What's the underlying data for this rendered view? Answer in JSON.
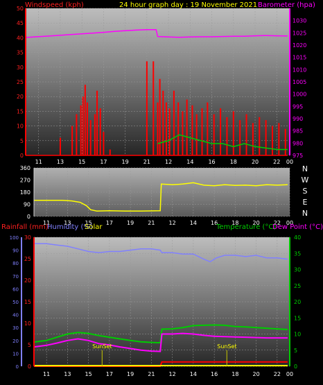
{
  "header": {
    "windspeed_label": "Windspeed (kph)",
    "title": "24 hour graph day : 19 November 2021",
    "barometer_label": "Barometer (hpa)"
  },
  "wind_dir_labels": [
    "N",
    "W",
    "S",
    "E",
    "N"
  ],
  "bottom_labels": {
    "rainfall": "Rainfall (mm)",
    "humidity": "Humidity (%)",
    "solar": "Solar",
    "temperature": "Temperature (°C)",
    "dewpoint": "Dew Point (°C)",
    "sunset": "SunSet"
  },
  "colors": {
    "wind": "#ff0000",
    "gust": "#ff0000",
    "wind_avg": "#00cc00",
    "wind_low": "#ccffcc",
    "barometer": "#ff00ff",
    "direction": "#ffff00",
    "humidity": "#8080ff",
    "temperature": "#00cc00",
    "dewpoint": "#ff00ff",
    "rainfall": "#ff0000",
    "solar": "#ffff00"
  },
  "chart_data": [
    {
      "type": "line",
      "name": "wind-barometer",
      "x_ticks": [
        "11",
        "13",
        "15",
        "17",
        "19",
        "21",
        "12",
        "14",
        "16",
        "18",
        "20",
        "22",
        "00"
      ],
      "left_axis": {
        "label": "Windspeed (kph)",
        "ylim": [
          0,
          50
        ],
        "ticks": [
          0,
          5,
          10,
          15,
          20,
          25,
          30,
          35,
          40,
          45,
          50
        ]
      },
      "right_axis": {
        "label": "Barometer (hpa)",
        "ylim": [
          975,
          1035
        ],
        "ticks": [
          975,
          980,
          985,
          990,
          995,
          1000,
          1005,
          1010,
          1015,
          1020,
          1025,
          1030
        ]
      },
      "barometer": [
        [
          9.8,
          1023.1
        ],
        [
          10.8,
          1023.4
        ],
        [
          12,
          1023.7
        ],
        [
          13,
          1024.0
        ],
        [
          14,
          1024.3
        ],
        [
          15,
          1024.6
        ],
        [
          16,
          1024.9
        ],
        [
          17,
          1025.2
        ],
        [
          18,
          1025.6
        ],
        [
          19,
          1025.9
        ],
        [
          20,
          1026.1
        ],
        [
          21,
          1026.3
        ],
        [
          21.85,
          1026.3
        ],
        [
          22.0,
          1023.5
        ],
        [
          23,
          1023.3
        ],
        [
          24,
          1023.2
        ],
        [
          25,
          1023.3
        ],
        [
          26,
          1023.4
        ],
        [
          27,
          1023.4
        ],
        [
          28,
          1023.5
        ],
        [
          29,
          1023.6
        ],
        [
          30,
          1023.6
        ],
        [
          31,
          1023.8
        ],
        [
          32,
          1023.9
        ],
        [
          33,
          1023.8
        ],
        [
          34,
          1023.7
        ]
      ],
      "gust_spikes": [
        [
          13.0,
          6
        ],
        [
          14.1,
          10
        ],
        [
          14.5,
          14
        ],
        [
          14.9,
          17
        ],
        [
          15.1,
          20
        ],
        [
          15.3,
          24
        ],
        [
          15.5,
          18
        ],
        [
          15.8,
          12
        ],
        [
          16.2,
          14
        ],
        [
          16.4,
          22
        ],
        [
          16.7,
          16
        ],
        [
          17.0,
          8
        ],
        [
          17.6,
          2
        ],
        [
          21.0,
          32
        ],
        [
          21.6,
          32
        ],
        [
          22.0,
          18
        ],
        [
          22.2,
          26
        ],
        [
          22.5,
          22
        ],
        [
          22.8,
          18
        ],
        [
          23.1,
          16
        ],
        [
          23.5,
          22
        ],
        [
          23.9,
          18
        ],
        [
          24.3,
          15
        ],
        [
          24.7,
          19
        ],
        [
          25.2,
          17
        ],
        [
          25.6,
          14
        ],
        [
          26.1,
          16
        ],
        [
          26.6,
          18
        ],
        [
          27.2,
          14
        ],
        [
          27.8,
          16
        ],
        [
          28.4,
          13
        ],
        [
          29.0,
          15
        ],
        [
          29.6,
          12
        ],
        [
          30.2,
          14
        ],
        [
          30.8,
          11
        ],
        [
          31.4,
          13
        ],
        [
          32.0,
          12
        ],
        [
          32.6,
          10
        ],
        [
          33.2,
          11
        ],
        [
          33.8,
          9
        ]
      ],
      "wind_average": [
        [
          22.0,
          4
        ],
        [
          23,
          5
        ],
        [
          24,
          7
        ],
        [
          25,
          6
        ],
        [
          26,
          5
        ],
        [
          27,
          4
        ],
        [
          28,
          4
        ],
        [
          29,
          3
        ],
        [
          30,
          4
        ],
        [
          31,
          3
        ],
        [
          32,
          2.5
        ],
        [
          33,
          2
        ],
        [
          34,
          2
        ]
      ]
    },
    {
      "type": "line",
      "name": "wind-direction",
      "x_ticks": [
        "11",
        "13",
        "15",
        "17",
        "19",
        "21",
        "12",
        "14",
        "16",
        "18",
        "20",
        "22",
        "00"
      ],
      "left_axis": {
        "ylim": [
          0,
          360
        ],
        "ticks": [
          0,
          90,
          180,
          270,
          360
        ]
      },
      "right_axis_labels": [
        "N",
        "W",
        "S",
        "E",
        "N"
      ],
      "direction": [
        [
          9.8,
          120
        ],
        [
          12.5,
          120
        ],
        [
          13.4,
          115
        ],
        [
          14.2,
          105
        ],
        [
          14.8,
          80
        ],
        [
          15.2,
          50
        ],
        [
          15.8,
          40
        ],
        [
          17,
          42
        ],
        [
          18.5,
          40
        ],
        [
          20,
          40
        ],
        [
          21.85,
          42
        ],
        [
          21.95,
          240
        ],
        [
          23,
          235
        ],
        [
          24,
          240
        ],
        [
          25,
          250
        ],
        [
          26,
          232
        ],
        [
          27,
          228
        ],
        [
          28,
          235
        ],
        [
          29,
          230
        ],
        [
          30,
          232
        ],
        [
          31,
          228
        ],
        [
          32,
          235
        ],
        [
          33,
          232
        ],
        [
          34,
          235
        ]
      ]
    },
    {
      "type": "line",
      "name": "temperature-humidity",
      "x_ticks": [
        "11",
        "13",
        "15",
        "17",
        "19",
        "21",
        "12",
        "14",
        "16",
        "18",
        "20",
        "22",
        "00"
      ],
      "left_axis": {
        "label": "Rainfall (mm)",
        "ylim": [
          0,
          30
        ],
        "ticks": [
          0,
          5,
          10,
          15,
          20,
          25,
          30
        ]
      },
      "left_axis_2": {
        "label": "Humidity (%)",
        "ylim": [
          0,
          100
        ],
        "ticks": [
          0,
          10,
          20,
          30,
          40,
          50,
          60,
          70,
          80,
          90,
          100
        ]
      },
      "right_axis": {
        "label": "Temperature (°C)",
        "ylim": [
          0,
          40
        ],
        "ticks": [
          0,
          5,
          10,
          15,
          20,
          25,
          30,
          35,
          40
        ]
      },
      "humidity": [
        [
          9.8,
          95
        ],
        [
          11,
          95
        ],
        [
          12,
          94
        ],
        [
          13,
          93
        ],
        [
          14,
          91
        ],
        [
          15,
          89
        ],
        [
          16,
          88
        ],
        [
          17,
          89
        ],
        [
          18,
          89
        ],
        [
          19,
          90
        ],
        [
          20,
          91
        ],
        [
          21,
          91
        ],
        [
          21.85,
          90
        ],
        [
          22,
          88
        ],
        [
          23,
          88
        ],
        [
          24,
          87
        ],
        [
          25,
          87
        ],
        [
          26,
          83
        ],
        [
          26.6,
          81
        ],
        [
          27.2,
          84
        ],
        [
          28,
          86
        ],
        [
          29,
          86
        ],
        [
          30,
          85
        ],
        [
          31,
          86
        ],
        [
          32,
          84
        ],
        [
          33,
          84
        ],
        [
          34,
          83
        ]
      ],
      "temperature": [
        [
          9.8,
          7.5
        ],
        [
          11,
          8.0
        ],
        [
          12,
          9.0
        ],
        [
          13,
          10.0
        ],
        [
          14,
          10.5
        ],
        [
          15,
          10.2
        ],
        [
          16,
          9.5
        ],
        [
          17,
          9.0
        ],
        [
          18,
          8.5
        ],
        [
          19,
          8.0
        ],
        [
          20,
          7.6
        ],
        [
          21,
          7.4
        ],
        [
          21.85,
          7.3
        ],
        [
          22,
          11.5
        ],
        [
          23,
          11.6
        ],
        [
          24,
          12.0
        ],
        [
          25,
          12.6
        ],
        [
          26,
          12.7
        ],
        [
          27,
          12.8
        ],
        [
          28,
          12.7
        ],
        [
          29,
          12.3
        ],
        [
          30,
          12.2
        ],
        [
          31,
          12.0
        ],
        [
          32,
          11.8
        ],
        [
          33,
          11.6
        ],
        [
          34,
          11.4
        ]
      ],
      "dewpoint": [
        [
          9.8,
          6.0
        ],
        [
          11,
          6.5
        ],
        [
          12,
          7.2
        ],
        [
          13,
          8.0
        ],
        [
          14,
          8.5
        ],
        [
          15,
          8.0
        ],
        [
          16,
          7.0
        ],
        [
          17,
          6.6
        ],
        [
          18,
          6.0
        ],
        [
          19,
          5.5
        ],
        [
          20,
          5.0
        ],
        [
          21,
          4.7
        ],
        [
          21.85,
          4.6
        ],
        [
          22,
          10.0
        ],
        [
          23,
          10.0
        ],
        [
          24,
          10.2
        ],
        [
          25,
          10.0
        ],
        [
          26,
          9.6
        ],
        [
          27,
          9.3
        ],
        [
          28,
          9.2
        ],
        [
          29,
          9.1
        ],
        [
          30,
          9.0
        ],
        [
          31,
          8.9
        ],
        [
          32,
          8.8
        ],
        [
          33,
          8.8
        ],
        [
          34,
          8.8
        ]
      ],
      "rainfall": [
        [
          9.8,
          0
        ],
        [
          21.85,
          0
        ],
        [
          22,
          1
        ],
        [
          34,
          1
        ]
      ],
      "solar": [
        [
          9.8,
          0.2
        ],
        [
          34,
          0.2
        ]
      ],
      "sunset_markers": [
        16.3,
        28.2
      ]
    }
  ]
}
